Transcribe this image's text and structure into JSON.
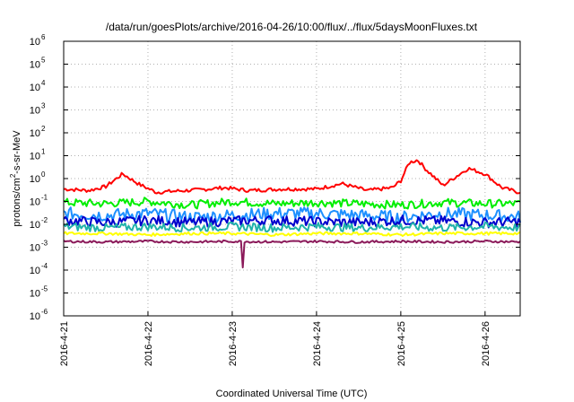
{
  "chart_data": {
    "type": "line",
    "title": "/data/run/goesPlots/archive/2016-04-26/10:00/flux/../flux/5daysMoonFluxes.txt",
    "xlabel": "Coordinated Universal Time (UTC)",
    "ylabel": "protons/cm2-s-sr-MeV",
    "y_scale": "log",
    "ylim": [
      1e-06,
      1000000.0
    ],
    "xlim": [
      "2016-04-21",
      "2016-04-26 10:00"
    ],
    "x_ticks": [
      "2016-4-21",
      "2016-4-22",
      "2016-4-23",
      "2016-4-24",
      "2016-4-25",
      "2016-4-26"
    ],
    "y_ticks": [
      {
        "base": "10",
        "exp": "-6"
      },
      {
        "base": "10",
        "exp": "-5"
      },
      {
        "base": "10",
        "exp": "-4"
      },
      {
        "base": "10",
        "exp": "-3"
      },
      {
        "base": "10",
        "exp": "-2"
      },
      {
        "base": "10",
        "exp": "-1"
      },
      {
        "base": "10",
        "exp": "0"
      },
      {
        "base": "10",
        "exp": "1"
      },
      {
        "base": "10",
        "exp": "2"
      },
      {
        "base": "10",
        "exp": "3"
      },
      {
        "base": "10",
        "exp": "4"
      },
      {
        "base": "10",
        "exp": "5"
      },
      {
        "base": "10",
        "exp": "6"
      }
    ],
    "grid": true,
    "grid_style": "dotted",
    "series": [
      {
        "color": "#ff0000",
        "x": [
          0,
          0.3,
          0.5,
          0.7,
          0.9,
          1.1,
          1.3,
          1.6,
          1.9,
          2.2,
          2.6,
          3.0,
          3.3,
          3.6,
          3.9,
          4.0,
          4.1,
          4.2,
          4.3,
          4.5,
          4.8,
          5.0,
          5.2,
          5.4,
          5.5
        ],
        "y": [
          0.35,
          0.3,
          0.45,
          1.6,
          0.55,
          0.25,
          0.28,
          0.32,
          0.4,
          0.3,
          0.35,
          0.35,
          0.6,
          0.3,
          0.4,
          0.8,
          5,
          6.5,
          2.5,
          0.5,
          2.8,
          1.6,
          0.4,
          0.25,
          0.45
        ]
      },
      {
        "color": "#00ee00",
        "x": [
          0,
          0.5,
          1,
          1.5,
          2,
          2.5,
          3,
          3.5,
          4,
          4.5,
          5,
          5.5
        ],
        "y": [
          0.09,
          0.08,
          0.1,
          0.07,
          0.1,
          0.08,
          0.09,
          0.08,
          0.07,
          0.09,
          0.08,
          0.08
        ]
      },
      {
        "color": "#1e90ff",
        "x": [
          0,
          0.5,
          1,
          1.5,
          2,
          2.5,
          3,
          3.5,
          4,
          4.5,
          5,
          5.5
        ],
        "y": [
          0.03,
          0.025,
          0.03,
          0.02,
          0.025,
          0.03,
          0.03,
          0.025,
          0.02,
          0.03,
          0.025,
          0.02
        ]
      },
      {
        "color": "#0000cd",
        "x": [
          0,
          0.5,
          1,
          1.5,
          2,
          2.5,
          3,
          3.5,
          4,
          4.5,
          5,
          5.5
        ],
        "y": [
          0.015,
          0.012,
          0.015,
          0.012,
          0.014,
          0.015,
          0.013,
          0.012,
          0.015,
          0.014,
          0.012,
          0.013
        ]
      },
      {
        "color": "#20b2aa",
        "x": [
          0,
          0.5,
          1,
          1.5,
          2,
          2.5,
          3,
          3.5,
          4,
          4.5,
          5,
          5.5
        ],
        "y": [
          0.008,
          0.007,
          0.008,
          0.007,
          0.008,
          0.007,
          0.008,
          0.007,
          0.008,
          0.007,
          0.008,
          0.007
        ]
      },
      {
        "color": "#ffff00",
        "x": [
          0,
          0.5,
          1,
          1.5,
          2,
          2.5,
          3,
          3.5,
          4,
          4.5,
          5,
          5.5
        ],
        "y": [
          0.004,
          0.004,
          0.0035,
          0.004,
          0.004,
          0.0035,
          0.004,
          0.004,
          0.0035,
          0.004,
          0.004,
          0.004
        ]
      },
      {
        "color": "#8b1a5a",
        "x": [
          0,
          0.5,
          1,
          1.5,
          2,
          2.5,
          3,
          3.5,
          4,
          4.5,
          5,
          5.5
        ],
        "y": [
          0.0018,
          0.0017,
          0.0018,
          0.0017,
          0.0018,
          0.0017,
          0.0018,
          0.0017,
          0.0018,
          0.0017,
          0.0018,
          0.0017
        ]
      }
    ]
  }
}
